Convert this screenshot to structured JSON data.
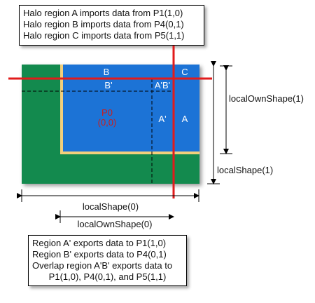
{
  "top_note": {
    "lines": [
      "Halo region A imports data from P1(1,0)",
      "Halo region B imports data from P4(0,1)",
      "Halo region C imports data from P5(1,1)"
    ]
  },
  "bottom_note": {
    "lines": [
      "Region A' exports data to P1(1,0)",
      "Region B' exports data to P4(0,1)",
      "Overlap region A'B' exports data to",
      "P1(1,0), P4(0,1), and P5(1,1)"
    ]
  },
  "regions": {
    "b": "B",
    "c": "C",
    "b_prime": "B'",
    "a_prime_b_prime": "A'B'",
    "a_prime": "A'",
    "a": "A",
    "p0_name": "P0",
    "p0_coords": "(0,0)"
  },
  "dimensions": {
    "local_own_shape_1": "localOwnShape(1)",
    "local_shape_1": "localShape(1)",
    "local_shape_0": "localShape(0)",
    "local_own_shape_0": "localOwnShape(0)"
  },
  "colors": {
    "outer_green": "#138a4e",
    "inner_blue": "#1c73d6",
    "border_tan": "#f2cf7c",
    "cut_line_red": "#e21b1b",
    "p0_label_red": "#c81e1e"
  }
}
